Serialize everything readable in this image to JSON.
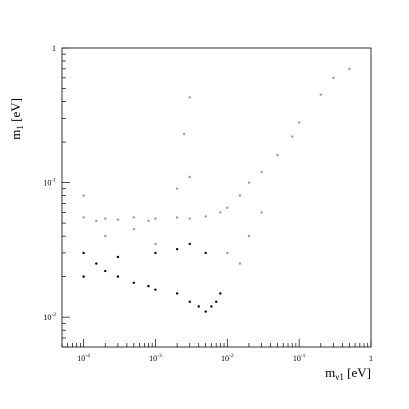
{
  "chart_data": {
    "type": "scatter",
    "title": "",
    "xlabel": "m_{ν1} [eV]",
    "ylabel": "m_{1} [eV]",
    "x_scale": "log",
    "y_scale": "log",
    "xlim": [
      5e-05,
      1
    ],
    "ylim": [
      0.006,
      1
    ],
    "grid": false,
    "x_ticks": [
      {
        "value": 0.0001,
        "label": "10^{-4}"
      },
      {
        "value": 0.001,
        "label": "10^{-3}"
      },
      {
        "value": 0.01,
        "label": "10^{-2}"
      },
      {
        "value": 0.1,
        "label": "10^{-1}"
      },
      {
        "value": 1,
        "label": "1"
      }
    ],
    "y_ticks": [
      {
        "value": 0.01,
        "label": "10^{-2}"
      },
      {
        "value": 0.1,
        "label": "10^{-1}"
      },
      {
        "value": 1,
        "label": "1"
      }
    ],
    "series": [
      {
        "color": "#9a9a9a",
        "description_points": "dense cloud",
        "values": [
          [
            0.0001,
            0.055
          ],
          [
            0.00015,
            0.052
          ],
          [
            0.0002,
            0.054
          ],
          [
            0.0003,
            0.053
          ],
          [
            0.0005,
            0.055
          ],
          [
            0.0008,
            0.052
          ],
          [
            0.001,
            0.054
          ],
          [
            0.002,
            0.055
          ],
          [
            0.003,
            0.054
          ],
          [
            0.005,
            0.056
          ],
          [
            0.008,
            0.06
          ],
          [
            0.01,
            0.065
          ],
          [
            0.015,
            0.08
          ],
          [
            0.02,
            0.1
          ],
          [
            0.03,
            0.12
          ],
          [
            0.05,
            0.16
          ],
          [
            0.08,
            0.22
          ],
          [
            0.1,
            0.28
          ],
          [
            0.2,
            0.45
          ],
          [
            0.3,
            0.6
          ],
          [
            0.5,
            0.7
          ],
          [
            0.003,
            0.43
          ],
          [
            0.0025,
            0.23
          ],
          [
            0.003,
            0.11
          ],
          [
            0.002,
            0.09
          ],
          [
            0.01,
            0.03
          ],
          [
            0.015,
            0.025
          ],
          [
            0.02,
            0.04
          ],
          [
            0.03,
            0.06
          ],
          [
            0.0001,
            0.08
          ],
          [
            0.0002,
            0.04
          ],
          [
            0.0005,
            0.045
          ],
          [
            0.001,
            0.035
          ]
        ]
      },
      {
        "color": "#000000",
        "values": [
          [
            0.0001,
            0.02
          ],
          [
            0.0001,
            0.03
          ],
          [
            0.00015,
            0.025
          ],
          [
            0.0002,
            0.022
          ],
          [
            0.0003,
            0.02
          ],
          [
            0.0005,
            0.018
          ],
          [
            0.0008,
            0.017
          ],
          [
            0.001,
            0.016
          ],
          [
            0.002,
            0.015
          ],
          [
            0.003,
            0.013
          ],
          [
            0.004,
            0.012
          ],
          [
            0.005,
            0.011
          ],
          [
            0.006,
            0.012
          ],
          [
            0.007,
            0.013
          ],
          [
            0.008,
            0.015
          ],
          [
            0.001,
            0.03
          ],
          [
            0.002,
            0.032
          ],
          [
            0.003,
            0.035
          ],
          [
            0.005,
            0.03
          ],
          [
            0.0003,
            0.028
          ]
        ]
      }
    ]
  }
}
